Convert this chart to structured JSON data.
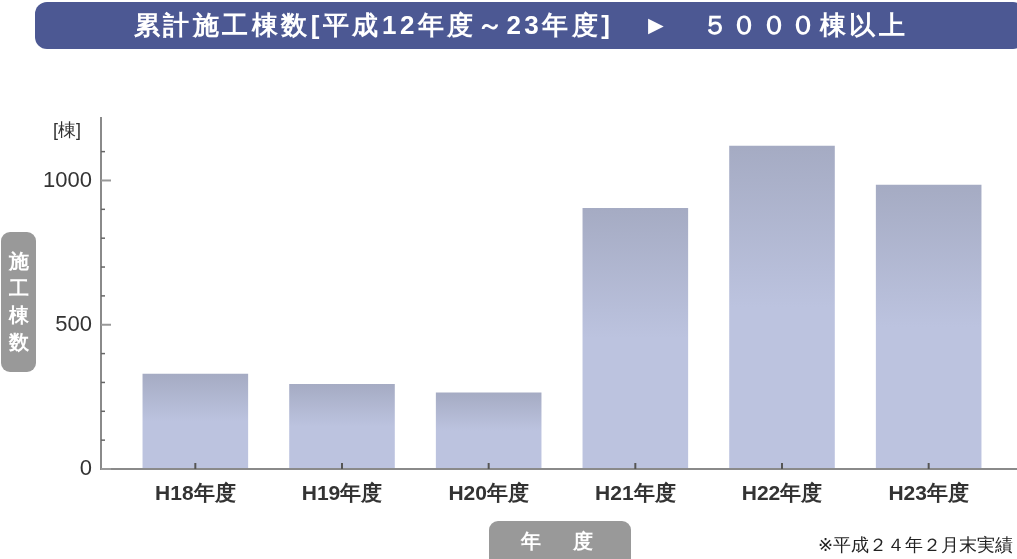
{
  "chart_data": {
    "type": "bar",
    "title": "累計施工棟数[平成12年度～23年度]　►　５０００棟以上",
    "xlabel": "年　度",
    "ylabel": "施工棟数",
    "annotations": [
      "[棟]",
      "※平成２４年２月末実績"
    ],
    "categories": [
      "H18年度",
      "H19年度",
      "H20年度",
      "H21年度",
      "H22年度",
      "H23年度"
    ],
    "values": [
      330,
      295,
      265,
      905,
      1120,
      985
    ],
    "color": "#bcc3df",
    "ylim": [
      0,
      1220
    ],
    "yticks": [
      0,
      {
        "value": 100,
        "label": null
      },
      {
        "value": 200,
        "label": null
      },
      {
        "value": 300,
        "label": null
      },
      {
        "value": 400,
        "label": null
      },
      500,
      {
        "value": 600,
        "label": null
      },
      {
        "value": 700,
        "label": null
      },
      {
        "value": 800,
        "label": null
      },
      {
        "value": 900,
        "label": null
      },
      1000,
      {
        "value": 1100,
        "label": null
      }
    ]
  }
}
